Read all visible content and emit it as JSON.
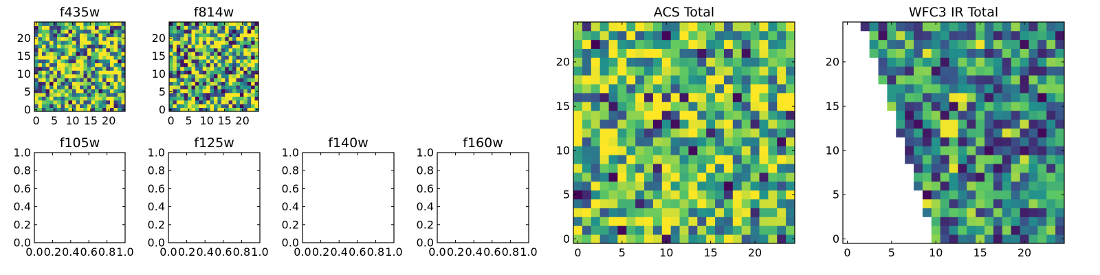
{
  "colormap": [
    "#440154",
    "#3b528b",
    "#21918c",
    "#5ec962",
    "#fde725"
  ],
  "chart_data": [
    {
      "type": "heatmap",
      "title": "f435w",
      "grid_size": [
        24,
        24
      ],
      "xlim": [
        -0.5,
        24.5
      ],
      "ylim": [
        -0.5,
        24.5
      ],
      "xticks": [
        0,
        5,
        10,
        15,
        20
      ],
      "yticks": [
        0,
        5,
        10,
        15,
        20
      ],
      "values": "randomized pixel intensities, mostly mid-to-high (green/yellow) with scattered dark pixels",
      "seed": 11,
      "base": 0.68,
      "spread": 0.55
    },
    {
      "type": "heatmap",
      "title": "f814w",
      "grid_size": [
        24,
        24
      ],
      "xlim": [
        -0.5,
        24.5
      ],
      "ylim": [
        -0.5,
        24.5
      ],
      "xticks": [
        0,
        5,
        10,
        15,
        20
      ],
      "yticks": [
        0,
        5,
        10,
        15,
        20
      ],
      "seed": 29,
      "base": 0.62,
      "spread": 0.6
    },
    {
      "type": "empty",
      "title": "f105w",
      "xlim": [
        0,
        1
      ],
      "ylim": [
        0,
        1
      ],
      "xticks": [
        "0.0",
        "0.2",
        "0.4",
        "0.6",
        "0.8",
        "1.0"
      ],
      "yticks": [
        "0.0",
        "0.2",
        "0.4",
        "0.6",
        "0.8",
        "1.0"
      ]
    },
    {
      "type": "empty",
      "title": "f125w",
      "xlim": [
        0,
        1
      ],
      "ylim": [
        0,
        1
      ],
      "xticks": [
        "0.0",
        "0.2",
        "0.4",
        "0.6",
        "0.8",
        "1.0"
      ],
      "yticks": [
        "0.0",
        "0.2",
        "0.4",
        "0.6",
        "0.8",
        "1.0"
      ]
    },
    {
      "type": "empty",
      "title": "f140w",
      "xlim": [
        0,
        1
      ],
      "ylim": [
        0,
        1
      ],
      "xticks": [
        "0.0",
        "0.2",
        "0.4",
        "0.6",
        "0.8",
        "1.0"
      ],
      "yticks": [
        "0.0",
        "0.2",
        "0.4",
        "0.6",
        "0.8",
        "1.0"
      ]
    },
    {
      "type": "empty",
      "title": "f160w",
      "xlim": [
        0,
        1
      ],
      "ylim": [
        0,
        1
      ],
      "xticks": [
        "0.0",
        "0.2",
        "0.4",
        "0.6",
        "0.8",
        "1.0"
      ],
      "yticks": [
        "0.0",
        "0.2",
        "0.4",
        "0.6",
        "0.8",
        "1.0"
      ]
    },
    {
      "type": "heatmap",
      "title": "ACS Total",
      "grid_size": [
        25,
        25
      ],
      "xlim": [
        -0.5,
        24.5
      ],
      "ylim": [
        -0.5,
        24.5
      ],
      "xticks": [
        0,
        5,
        10,
        15,
        20
      ],
      "yticks": [
        0,
        5,
        10,
        15,
        20
      ],
      "seed": 47,
      "base": 0.7,
      "spread": 0.45
    },
    {
      "type": "heatmap",
      "title": "WFC3 IR Total",
      "grid_size": [
        25,
        25
      ],
      "xlim": [
        -0.5,
        24.5
      ],
      "ylim": [
        -0.5,
        24.5
      ],
      "xticks": [
        0,
        5,
        10,
        15,
        20
      ],
      "yticks": [
        0,
        5,
        10,
        15,
        20
      ],
      "seed": 83,
      "base": 0.46,
      "spread": 0.4,
      "masked_region": "lower-left triangle left of the line from (10, -0.5) to (1.5, 24.5) is blank",
      "mask_line": [
        [
          10,
          -0.5
        ],
        [
          1.5,
          24.5
        ]
      ],
      "bright_block": {
        "x": [
          10.5,
          12.5
        ],
        "y": [
          11.5,
          13.5
        ],
        "value": 0.98
      }
    }
  ]
}
